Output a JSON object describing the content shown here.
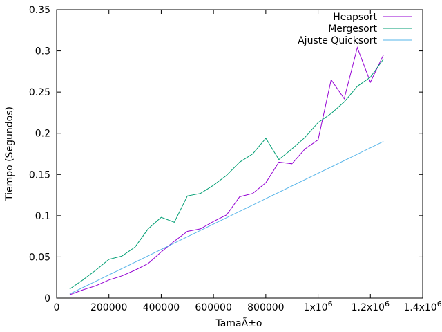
{
  "chart_data": {
    "type": "line",
    "title": "",
    "xlabel": "TamaÃ±o",
    "ylabel": "Tiempo (Segundos)",
    "xlim": [
      0,
      1400000
    ],
    "ylim": [
      0,
      0.35
    ],
    "grid": false,
    "legend_position": "top-right",
    "x_ticks": [
      {
        "value": 0,
        "label": "0"
      },
      {
        "value": 200000,
        "label": "200000"
      },
      {
        "value": 400000,
        "label": "400000"
      },
      {
        "value": 600000,
        "label": "600000"
      },
      {
        "value": 800000,
        "label": "800000"
      },
      {
        "value": 1000000,
        "label": "1x10",
        "exp": "6"
      },
      {
        "value": 1200000,
        "label": "1.2x10",
        "exp": "6"
      },
      {
        "value": 1400000,
        "label": "1.4x10",
        "exp": "6"
      }
    ],
    "y_ticks": [
      {
        "value": 0,
        "label": "0"
      },
      {
        "value": 0.05,
        "label": "0.05"
      },
      {
        "value": 0.1,
        "label": "0.1"
      },
      {
        "value": 0.15,
        "label": "0.15"
      },
      {
        "value": 0.2,
        "label": "0.2"
      },
      {
        "value": 0.25,
        "label": "0.25"
      },
      {
        "value": 0.3,
        "label": "0.3"
      },
      {
        "value": 0.35,
        "label": "0.35"
      }
    ],
    "series": [
      {
        "name": "Heapsort",
        "color": "#9400d3",
        "x": [
          50000,
          100000,
          150000,
          200000,
          250000,
          300000,
          350000,
          400000,
          450000,
          500000,
          550000,
          600000,
          650000,
          700000,
          750000,
          800000,
          850000,
          900000,
          950000,
          1000000,
          1050000,
          1100000,
          1150000,
          1200000,
          1250000
        ],
        "y": [
          0.004,
          0.01,
          0.015,
          0.022,
          0.027,
          0.034,
          0.042,
          0.056,
          0.069,
          0.081,
          0.084,
          0.093,
          0.101,
          0.123,
          0.127,
          0.14,
          0.165,
          0.163,
          0.181,
          0.192,
          0.265,
          0.242,
          0.304,
          0.262,
          0.295
        ]
      },
      {
        "name": "Mergesort",
        "color": "#009e73",
        "x": [
          50000,
          100000,
          150000,
          200000,
          250000,
          300000,
          350000,
          400000,
          450000,
          500000,
          550000,
          600000,
          650000,
          700000,
          750000,
          800000,
          850000,
          900000,
          950000,
          1000000,
          1050000,
          1100000,
          1150000,
          1200000,
          1250000
        ],
        "y": [
          0.011,
          0.022,
          0.034,
          0.047,
          0.051,
          0.062,
          0.084,
          0.098,
          0.092,
          0.124,
          0.127,
          0.137,
          0.149,
          0.165,
          0.175,
          0.194,
          0.168,
          0.181,
          0.195,
          0.213,
          0.224,
          0.238,
          0.257,
          0.268,
          0.29
        ]
      },
      {
        "name": "Ajuste Quicksort",
        "color": "#56b4e9",
        "x": [
          50000,
          1250000
        ],
        "y": [
          0.005,
          0.19
        ]
      }
    ]
  }
}
